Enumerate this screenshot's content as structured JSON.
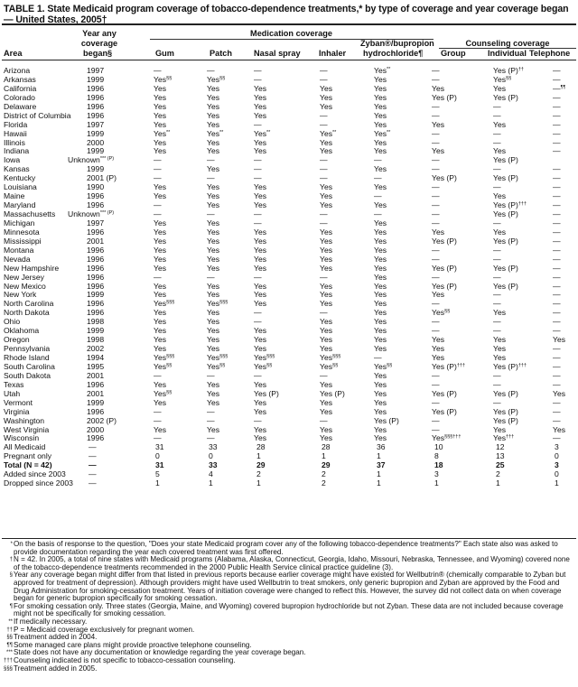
{
  "title": "TABLE 1. State Medicaid program coverage of tobacco-dependence treatments,* by type of coverage and year coverage began — United States, 2005†",
  "headers": {
    "area": "Area",
    "year_line1": "Year any",
    "year_line2": "coverage",
    "year_line3": "began§",
    "medication_group": "Medication coverage",
    "counseling_group": "Counseling coverage",
    "gum": "Gum",
    "patch": "Patch",
    "nasal": "Nasal spray",
    "inhaler": "Inhaler",
    "zyban_line1": "Zyban®/bupropion",
    "zyban_line2": "hydrochloride¶",
    "group": "Group",
    "individual": "Individual",
    "telephone": "Telephone"
  },
  "rows": [
    [
      "Arizona",
      "1997",
      "—",
      "—",
      "—",
      "—",
      "Yes^**",
      "—",
      "Yes (P)^††",
      "—"
    ],
    [
      "Arkansas",
      "1999",
      "Yes^§§",
      "Yes^§§",
      "—",
      "—",
      "Yes",
      "—",
      "Yes^§§",
      "—"
    ],
    [
      "California",
      "1996",
      "Yes",
      "Yes",
      "Yes",
      "Yes",
      "Yes",
      "Yes",
      "Yes",
      "—^¶¶"
    ],
    [
      "Colorado",
      "1996",
      "Yes",
      "Yes",
      "Yes",
      "Yes",
      "Yes",
      "Yes (P)",
      "Yes (P)",
      "—"
    ],
    [
      "Delaware",
      "1996",
      "Yes",
      "Yes",
      "Yes",
      "Yes",
      "Yes",
      "—",
      "—",
      "—"
    ],
    [
      "District of Columbia",
      "1996",
      "Yes",
      "Yes",
      "Yes",
      "—",
      "Yes",
      "—",
      "—",
      "—"
    ],
    [
      "Florida",
      "1997",
      "Yes",
      "Yes",
      "—",
      "—",
      "Yes",
      "Yes",
      "Yes",
      "—"
    ],
    [
      "Hawaii",
      "1999",
      "Yes^**",
      "Yes^**",
      "Yes^**",
      "Yes^**",
      "Yes^**",
      "—",
      "—",
      "—"
    ],
    [
      "Illinois",
      "2000",
      "Yes",
      "Yes",
      "Yes",
      "Yes",
      "Yes",
      "—",
      "—",
      "—"
    ],
    [
      "Indiana",
      "1999",
      "Yes",
      "Yes",
      "Yes",
      "Yes",
      "Yes",
      "Yes",
      "Yes",
      "—"
    ],
    [
      "Iowa",
      "Unknown^*** (P)",
      "—",
      "—",
      "—",
      "—",
      "—",
      "—",
      "Yes (P)",
      ""
    ],
    [
      "Kansas",
      "1999",
      "—",
      "Yes",
      "—",
      "—",
      "Yes",
      "—",
      "—",
      "—"
    ],
    [
      "Kentucky",
      "2001 (P)",
      "—",
      "—",
      "—",
      "—",
      "—",
      "Yes (P)",
      "Yes (P)",
      "—"
    ],
    [
      "Louisiana",
      "1990",
      "Yes",
      "Yes",
      "Yes",
      "Yes",
      "Yes",
      "—",
      "—",
      "—"
    ],
    [
      "Maine",
      "1996",
      "Yes",
      "Yes",
      "Yes",
      "Yes",
      "—",
      "—",
      "Yes",
      "—"
    ],
    [
      "Maryland",
      "1996",
      "—",
      "Yes",
      "Yes",
      "Yes",
      "Yes",
      "—",
      "Yes (P)^†††",
      "—"
    ],
    [
      "Massachusetts",
      "Unknown^*** (P)",
      "—",
      "—",
      "—",
      "—",
      "—",
      "—",
      "Yes (P)",
      "—"
    ],
    [
      "Michigan",
      "1997",
      "Yes",
      "Yes",
      "—",
      "—",
      "Yes",
      "—",
      "—",
      "—"
    ],
    [
      "Minnesota",
      "1996",
      "Yes",
      "Yes",
      "Yes",
      "Yes",
      "Yes",
      "Yes",
      "Yes",
      "—"
    ],
    [
      "Mississippi",
      "2001",
      "Yes",
      "Yes",
      "Yes",
      "Yes",
      "Yes",
      "Yes (P)",
      "Yes (P)",
      "—"
    ],
    [
      "Montana",
      "1996",
      "Yes",
      "Yes",
      "Yes",
      "Yes",
      "Yes",
      "—",
      "—",
      "—"
    ],
    [
      "Nevada",
      "1996",
      "Yes",
      "Yes",
      "Yes",
      "Yes",
      "Yes",
      "—",
      "—",
      "—"
    ],
    [
      "New Hampshire",
      "1996",
      "Yes",
      "Yes",
      "Yes",
      "Yes",
      "Yes",
      "Yes (P)",
      "Yes (P)",
      "—"
    ],
    [
      "New Jersey",
      "1996",
      "—",
      "—",
      "—",
      "—",
      "Yes",
      "—",
      "—",
      "—"
    ],
    [
      "New Mexico",
      "1996",
      "Yes",
      "Yes",
      "Yes",
      "Yes",
      "Yes",
      "Yes (P)",
      "Yes (P)",
      "—"
    ],
    [
      "New York",
      "1999",
      "Yes",
      "Yes",
      "Yes",
      "Yes",
      "Yes",
      "Yes",
      "—",
      "—"
    ],
    [
      "North Carolina",
      "1996",
      "Yes^§§§",
      "Yes^§§§",
      "Yes",
      "Yes",
      "Yes",
      "—",
      "—",
      "—"
    ],
    [
      "North Dakota",
      "1996",
      "Yes",
      "Yes",
      "—",
      "—",
      "Yes",
      "Yes^§§",
      "Yes",
      "—"
    ],
    [
      "Ohio",
      "1998",
      "Yes",
      "Yes",
      "—",
      "Yes",
      "Yes",
      "—",
      "—",
      "—"
    ],
    [
      "Oklahoma",
      "1999",
      "Yes",
      "Yes",
      "Yes",
      "Yes",
      "Yes",
      "—",
      "—",
      "—"
    ],
    [
      "Oregon",
      "1998",
      "Yes",
      "Yes",
      "Yes",
      "Yes",
      "Yes",
      "Yes",
      "Yes",
      "Yes"
    ],
    [
      "Pennsylvania",
      "2002",
      "Yes",
      "Yes",
      "Yes",
      "Yes",
      "Yes",
      "Yes",
      "Yes",
      "—"
    ],
    [
      "Rhode Island",
      "1994",
      "Yes^§§§",
      "Yes^§§§",
      "Yes^§§§",
      "Yes^§§§",
      "—",
      "Yes",
      "Yes",
      "—"
    ],
    [
      "South Carolina",
      "1995",
      "Yes^§§",
      "Yes^§§",
      "Yes^§§",
      "Yes^§§",
      "Yes^§§",
      "Yes (P)^†††",
      "Yes (P)^†††",
      "—"
    ],
    [
      "South Dakota",
      "2001",
      "—",
      "—",
      "—",
      "—",
      "Yes",
      "—",
      "—",
      "—"
    ],
    [
      "Texas",
      "1996",
      "Yes",
      "Yes",
      "Yes",
      "Yes",
      "Yes",
      "—",
      "—",
      "—"
    ],
    [
      "Utah",
      "2001",
      "Yes^§§",
      "Yes",
      "Yes (P)",
      "Yes (P)",
      "Yes",
      "Yes (P)",
      "Yes (P)",
      "Yes"
    ],
    [
      "Vermont",
      "1999",
      "Yes",
      "Yes",
      "Yes",
      "Yes",
      "Yes",
      "—",
      "—",
      "—"
    ],
    [
      "Virginia",
      "1996",
      "—",
      "—",
      "Yes",
      "Yes",
      "Yes",
      "Yes (P)",
      "Yes (P)",
      "—"
    ],
    [
      "Washington",
      "2002 (P)",
      "—",
      "—",
      "—",
      "—",
      "Yes (P)",
      "—",
      "Yes (P)",
      "—"
    ],
    [
      "West Virginia",
      "2000",
      "Yes",
      "Yes",
      "Yes",
      "Yes",
      "Yes",
      "—",
      "Yes",
      "Yes"
    ],
    [
      "Wisconsin",
      "1996",
      "—",
      "—",
      "Yes",
      "Yes",
      "Yes",
      "Yes^§§§†††",
      "Yes^†††",
      "—"
    ]
  ],
  "summary_rows": [
    {
      "label": "All Medicaid",
      "values": [
        "—",
        "31",
        "33",
        "28",
        "28",
        "36",
        "10",
        "12",
        "3"
      ],
      "bold": false
    },
    {
      "label": "Pregnant only",
      "values": [
        "—",
        "0",
        "0",
        "1",
        "1",
        "1",
        "8",
        "13",
        "0"
      ],
      "bold": false
    },
    {
      "label": "Total (N = 42)",
      "values": [
        "—",
        "31",
        "33",
        "29",
        "29",
        "37",
        "18",
        "25",
        "3"
      ],
      "bold": true
    },
    {
      "label": "Added since 2003",
      "values": [
        "—",
        "5",
        "4",
        "2",
        "2",
        "1",
        "3",
        "2",
        "0"
      ],
      "bold": false
    },
    {
      "label": "Dropped since 2003",
      "values": [
        "—",
        "1",
        "1",
        "1",
        "2",
        "1",
        "1",
        "1",
        "1"
      ],
      "bold": false
    }
  ],
  "footnotes": [
    {
      "mark": "*",
      "text": "On the basis of response to the question, \"Does your state Medicaid program cover any of the following tobacco-dependence treatments?\" Each state also was asked to provide documentation regarding the year each covered treatment was first offered."
    },
    {
      "mark": "†",
      "text": "N = 42. In 2005, a total of nine states with Medicaid programs (Alabama, Alaska, Connecticut, Georgia, Idaho, Missouri, Nebraska, Tennessee, and Wyoming) covered none of the tobacco-dependence treatments recommended in the 2000 Public Health Service clinical practice guideline (3)."
    },
    {
      "mark": "§",
      "text": "Year any coverage began might differ from that listed in previous reports because earlier coverage might have existed for Wellbutrin® (chemically comparable to Zyban but approved for treatment of depression). Although providers might have used Wellbutrin to treat smokers, only generic bupropion and Zyban are approved by the Food and Drug Administration for smoking-cessation treatment. Years of initiation coverage were changed to reflect this. However, the survey did not collect data on when coverage began for generic bupropion specifically for smoking cessation."
    },
    {
      "mark": "¶",
      "text": "For smoking cessation only. Three states (Georgia, Maine, and Wyoming) covered bupropion hydrochloride but not Zyban. These data are not included because coverage might not be specifically for smoking cessation."
    },
    {
      "mark": "**",
      "text": "If medically necessary."
    },
    {
      "mark": "††",
      "text": "P = Medicaid coverage exclusively for pregnant women."
    },
    {
      "mark": "§§",
      "text": "Treatment added in 2004."
    },
    {
      "mark": "¶¶",
      "text": "Some managed care plans might provide proactive telephone counseling."
    },
    {
      "mark": "***",
      "text": "State does not have any documentation or knowledge regarding the year coverage began."
    },
    {
      "mark": "†††",
      "text": "Counseling indicated is not specific to tobacco-cessation counseling."
    },
    {
      "mark": "§§§",
      "text": "Treatment added in 2005."
    }
  ]
}
